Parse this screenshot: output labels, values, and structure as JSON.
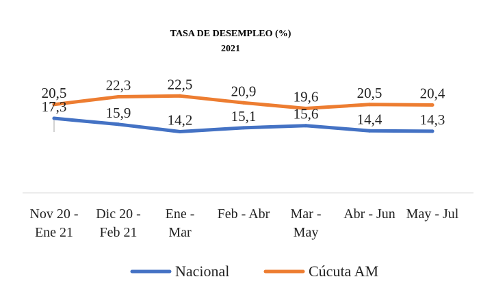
{
  "chart_data": {
    "type": "line",
    "title": "TASA DE DESEMPLEO (%)",
    "subtitle": "2021",
    "categories": [
      [
        "Nov 20 -",
        "Ene 21"
      ],
      [
        "Dic 20 -",
        "Feb 21"
      ],
      [
        "Ene -",
        "Mar"
      ],
      [
        "Feb - Abr"
      ],
      [
        "Mar -",
        "May"
      ],
      [
        "Abr - Jun"
      ],
      [
        "May - Jul"
      ]
    ],
    "series": [
      {
        "name": "Nacional",
        "color": "#4472C4",
        "values": [
          17.3,
          15.9,
          14.2,
          15.1,
          15.6,
          14.4,
          14.3
        ],
        "labels": [
          "17,3",
          "15,9",
          "14,2",
          "15,1",
          "15,6",
          "14,4",
          "14,3"
        ]
      },
      {
        "name": "Cúcuta AM",
        "color": "#ED7D31",
        "values": [
          20.5,
          22.3,
          22.5,
          20.9,
          19.6,
          20.5,
          20.4
        ],
        "labels": [
          "20,5",
          "22,3",
          "22,5",
          "20,9",
          "19,6",
          "20,5",
          "20,4"
        ]
      }
    ],
    "ylim": [
      0,
      30
    ],
    "grid": false,
    "legend_position": "bottom"
  }
}
